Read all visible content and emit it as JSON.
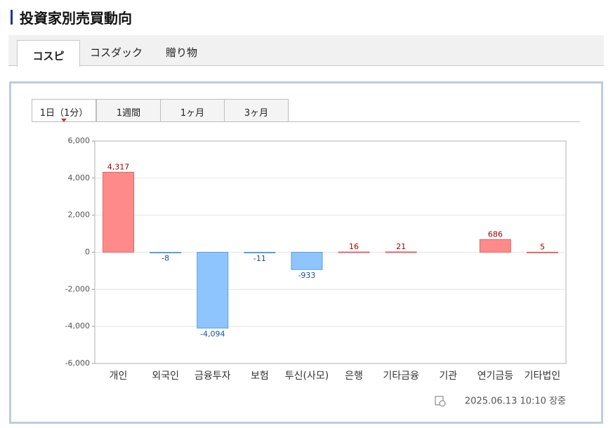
{
  "header": {
    "title": "投資家別売買動向"
  },
  "tabs": [
    "コスピ",
    "コスダック",
    "贈り物"
  ],
  "period_tabs": [
    "1日（1分）",
    "1週間",
    "1ヶ月",
    "3ヶ月"
  ],
  "footer": {
    "timestamp": "2025.06.13 10:10 장중"
  },
  "chart_data": {
    "type": "bar",
    "categories": [
      "개인",
      "외국인",
      "금융투자",
      "보험",
      "투신(사모)",
      "은행",
      "기타금융",
      "기관",
      "연기금등",
      "기타법인"
    ],
    "values": [
      4317,
      -8,
      -4094,
      -11,
      -933,
      16,
      21,
      null,
      686,
      5
    ],
    "value_labels": [
      "4,317",
      "-8",
      "-4,094",
      "-11",
      "-933",
      "16",
      "21",
      null,
      "686",
      "5"
    ],
    "positive_color": "#ff8a8a",
    "negative_color": "#8ec5ff",
    "ylim": [
      -6000,
      6000
    ],
    "yticks": [
      {
        "value": -6000,
        "label": "-6,000"
      },
      {
        "value": -4000,
        "label": "-4,000"
      },
      {
        "value": -2000,
        "label": "-2,000"
      },
      0,
      {
        "value": 2000,
        "label": "2,000"
      },
      {
        "value": 4000,
        "label": "4,000"
      },
      {
        "value": 6000,
        "label": "6,000"
      }
    ],
    "grid": true
  }
}
